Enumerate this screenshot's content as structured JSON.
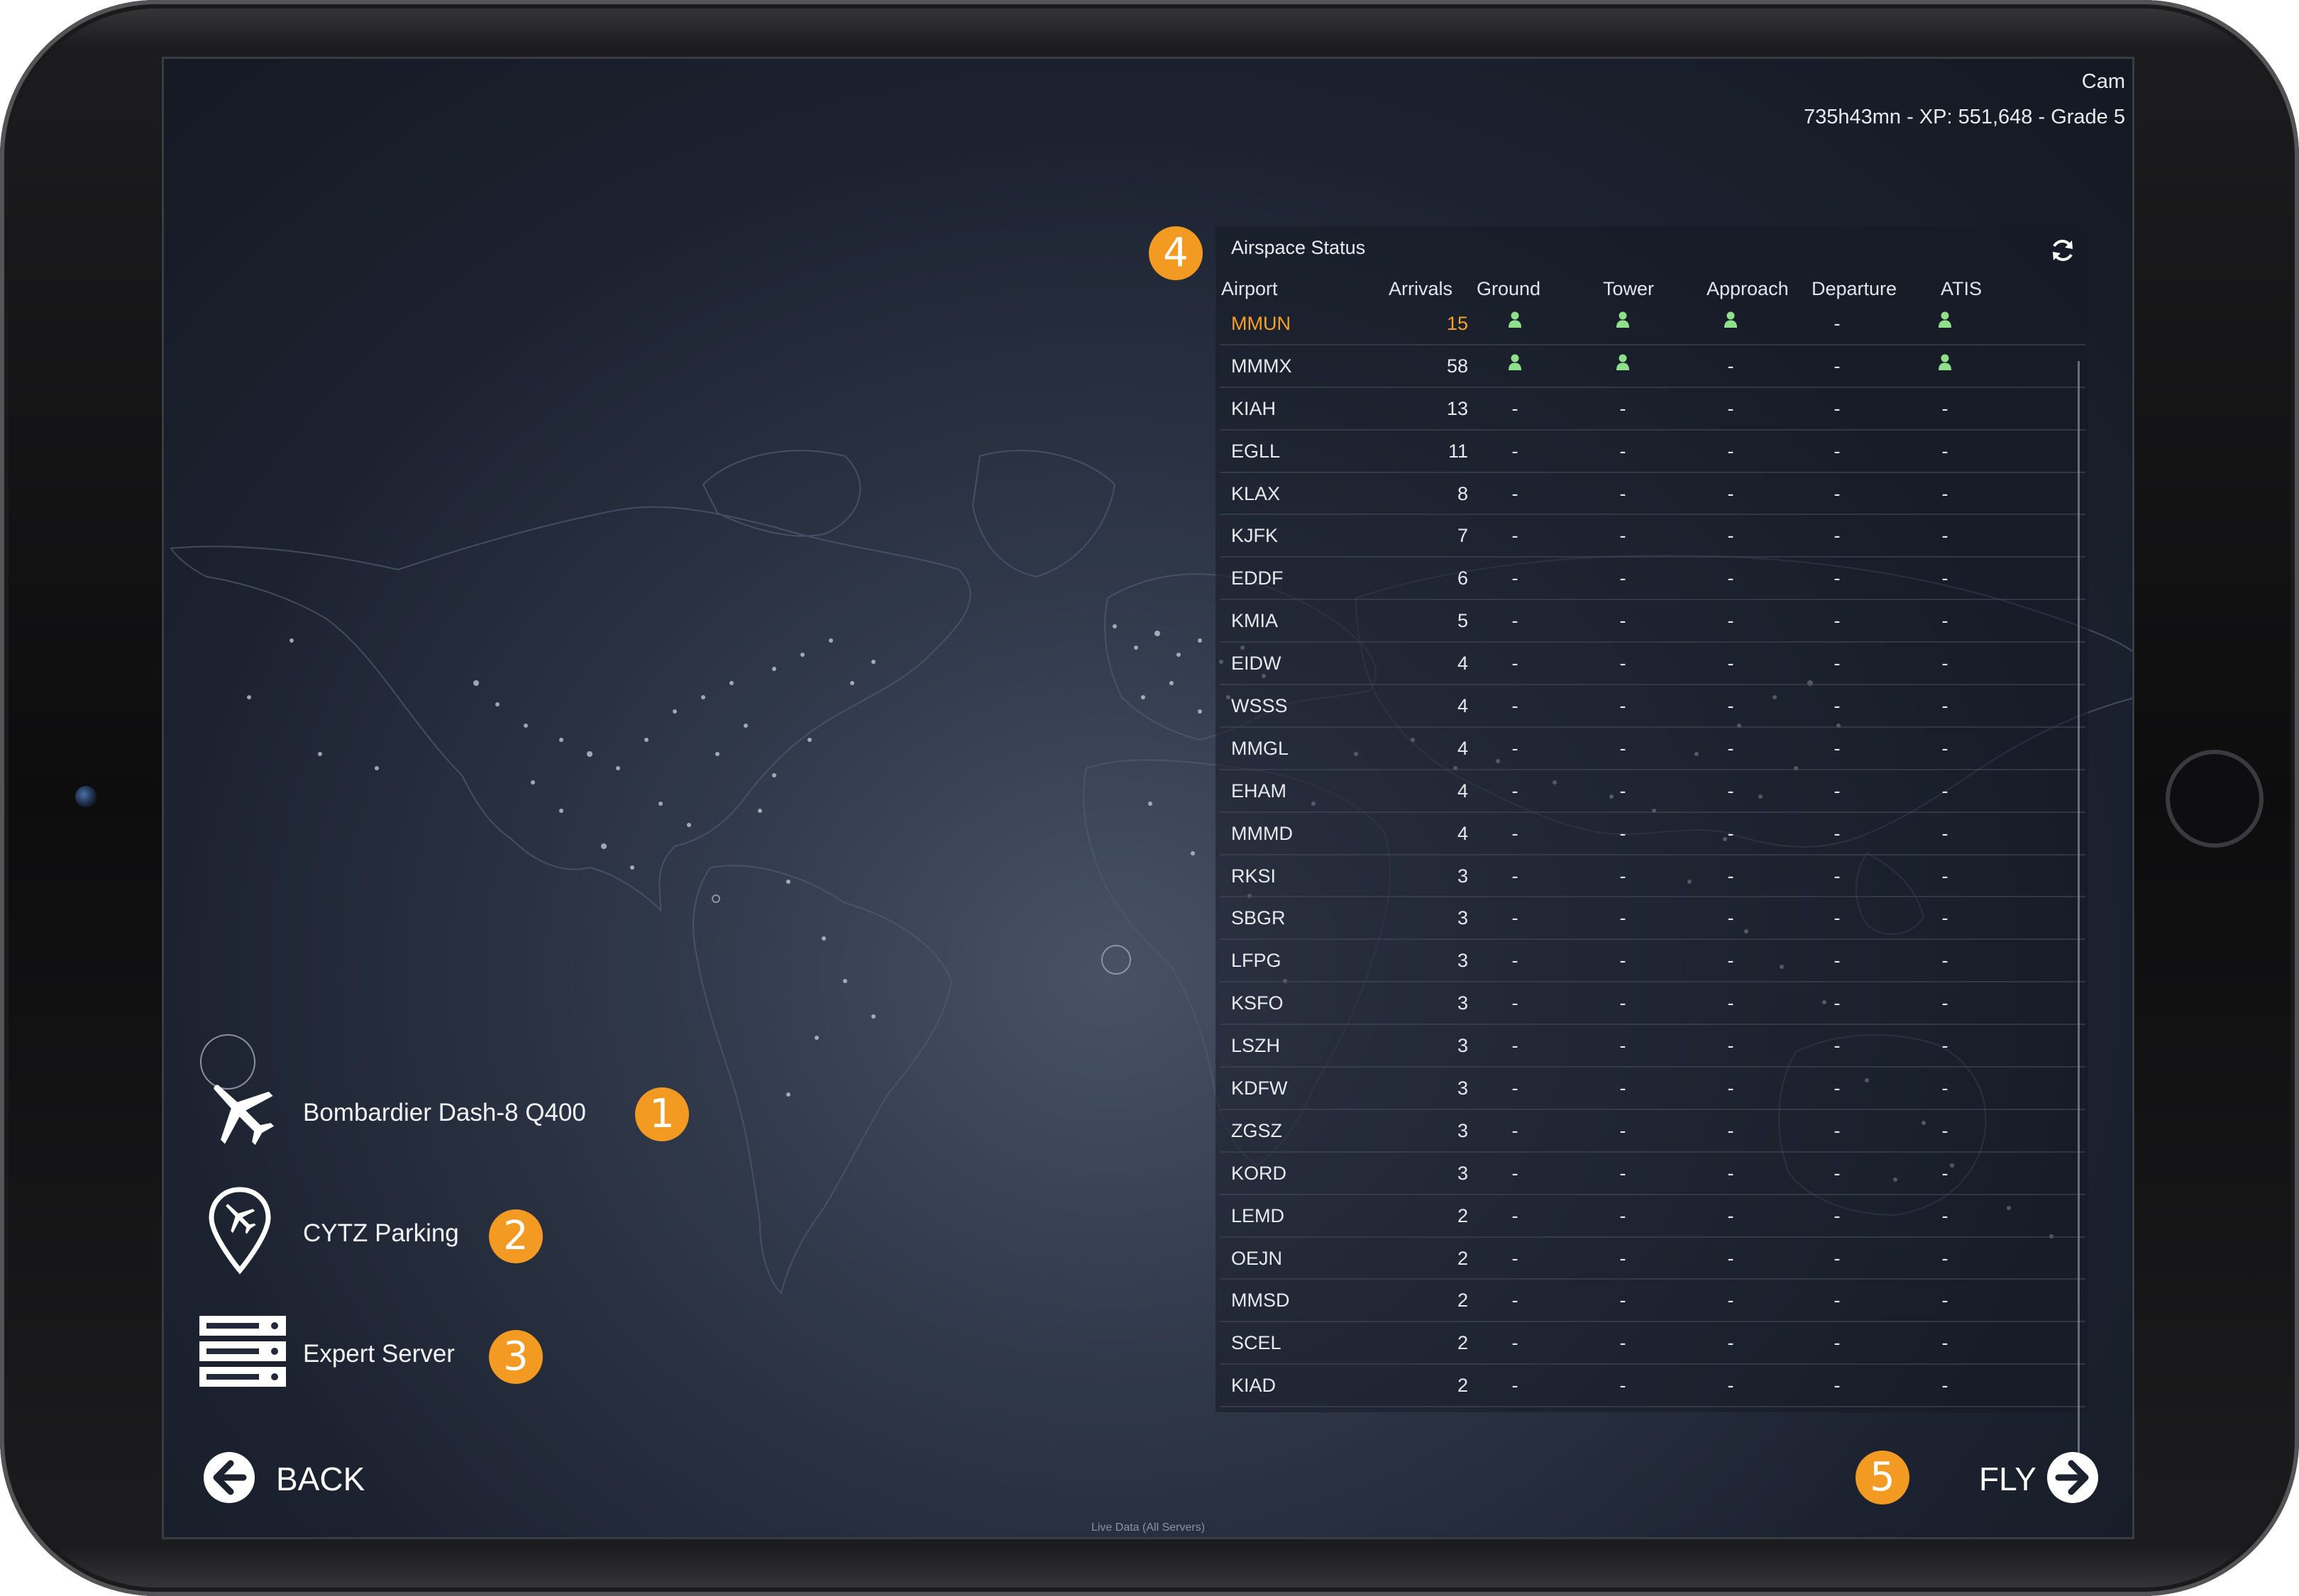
{
  "user": {
    "name": "Cam",
    "stats": "735h43mn - XP: 551,648 - Grade 5"
  },
  "airspace": {
    "title": "Airspace Status",
    "refresh_icon": "refresh-icon",
    "columns": [
      "Airport",
      "Arrivals",
      "Ground",
      "Tower",
      "Approach",
      "Departure",
      "ATIS"
    ],
    "rows": [
      {
        "airport": "MMUN",
        "arrivals": "15",
        "ground": "atc",
        "tower": "atc",
        "approach": "atc",
        "departure": "-",
        "atis": "atc"
      },
      {
        "airport": "MMMX",
        "arrivals": "58",
        "ground": "atc",
        "tower": "atc",
        "approach": "-",
        "departure": "-",
        "atis": "atc"
      },
      {
        "airport": "KIAH",
        "arrivals": "13",
        "ground": "-",
        "tower": "-",
        "approach": "-",
        "departure": "-",
        "atis": "-"
      },
      {
        "airport": "EGLL",
        "arrivals": "11",
        "ground": "-",
        "tower": "-",
        "approach": "-",
        "departure": "-",
        "atis": "-"
      },
      {
        "airport": "KLAX",
        "arrivals": "8",
        "ground": "-",
        "tower": "-",
        "approach": "-",
        "departure": "-",
        "atis": "-"
      },
      {
        "airport": "KJFK",
        "arrivals": "7",
        "ground": "-",
        "tower": "-",
        "approach": "-",
        "departure": "-",
        "atis": "-"
      },
      {
        "airport": "EDDF",
        "arrivals": "6",
        "ground": "-",
        "tower": "-",
        "approach": "-",
        "departure": "-",
        "atis": "-"
      },
      {
        "airport": "KMIA",
        "arrivals": "5",
        "ground": "-",
        "tower": "-",
        "approach": "-",
        "departure": "-",
        "atis": "-"
      },
      {
        "airport": "EIDW",
        "arrivals": "4",
        "ground": "-",
        "tower": "-",
        "approach": "-",
        "departure": "-",
        "atis": "-"
      },
      {
        "airport": "WSSS",
        "arrivals": "4",
        "ground": "-",
        "tower": "-",
        "approach": "-",
        "departure": "-",
        "atis": "-"
      },
      {
        "airport": "MMGL",
        "arrivals": "4",
        "ground": "-",
        "tower": "-",
        "approach": "-",
        "departure": "-",
        "atis": "-"
      },
      {
        "airport": "EHAM",
        "arrivals": "4",
        "ground": "-",
        "tower": "-",
        "approach": "-",
        "departure": "-",
        "atis": "-"
      },
      {
        "airport": "MMMD",
        "arrivals": "4",
        "ground": "-",
        "tower": "-",
        "approach": "-",
        "departure": "-",
        "atis": "-"
      },
      {
        "airport": "RKSI",
        "arrivals": "3",
        "ground": "-",
        "tower": "-",
        "approach": "-",
        "departure": "-",
        "atis": "-"
      },
      {
        "airport": "SBGR",
        "arrivals": "3",
        "ground": "-",
        "tower": "-",
        "approach": "-",
        "departure": "-",
        "atis": "-"
      },
      {
        "airport": "LFPG",
        "arrivals": "3",
        "ground": "-",
        "tower": "-",
        "approach": "-",
        "departure": "-",
        "atis": "-"
      },
      {
        "airport": "KSFO",
        "arrivals": "3",
        "ground": "-",
        "tower": "-",
        "approach": "-",
        "departure": "-",
        "atis": "-"
      },
      {
        "airport": "LSZH",
        "arrivals": "3",
        "ground": "-",
        "tower": "-",
        "approach": "-",
        "departure": "-",
        "atis": "-"
      },
      {
        "airport": "KDFW",
        "arrivals": "3",
        "ground": "-",
        "tower": "-",
        "approach": "-",
        "departure": "-",
        "atis": "-"
      },
      {
        "airport": "ZGSZ",
        "arrivals": "3",
        "ground": "-",
        "tower": "-",
        "approach": "-",
        "departure": "-",
        "atis": "-"
      },
      {
        "airport": "KORD",
        "arrivals": "3",
        "ground": "-",
        "tower": "-",
        "approach": "-",
        "departure": "-",
        "atis": "-"
      },
      {
        "airport": "LEMD",
        "arrivals": "2",
        "ground": "-",
        "tower": "-",
        "approach": "-",
        "departure": "-",
        "atis": "-"
      },
      {
        "airport": "OEJN",
        "arrivals": "2",
        "ground": "-",
        "tower": "-",
        "approach": "-",
        "departure": "-",
        "atis": "-"
      },
      {
        "airport": "MMSD",
        "arrivals": "2",
        "ground": "-",
        "tower": "-",
        "approach": "-",
        "departure": "-",
        "atis": "-"
      },
      {
        "airport": "SCEL",
        "arrivals": "2",
        "ground": "-",
        "tower": "-",
        "approach": "-",
        "departure": "-",
        "atis": "-"
      },
      {
        "airport": "KIAD",
        "arrivals": "2",
        "ground": "-",
        "tower": "-",
        "approach": "-",
        "departure": "-",
        "atis": "-"
      }
    ]
  },
  "menu": {
    "aircraft": {
      "label": "Bombardier Dash-8 Q400",
      "icon": "airplane-icon",
      "badge": "1"
    },
    "airport": {
      "label": "CYTZ Parking",
      "icon": "airport-pin-icon",
      "badge": "2"
    },
    "server": {
      "label": "Expert Server",
      "icon": "server-icon",
      "badge": "3"
    }
  },
  "airspace_badge": "4",
  "nav": {
    "back": "BACK",
    "fly": "FLY",
    "fly_badge": "5",
    "back_icon": "arrow-left-icon",
    "fly_icon": "arrow-right-icon"
  },
  "footer": "Live Data (All Servers)",
  "colors": {
    "accent": "#f39a22",
    "atc_active": "#8fe08a",
    "highlight_text": "#f6a12a"
  }
}
